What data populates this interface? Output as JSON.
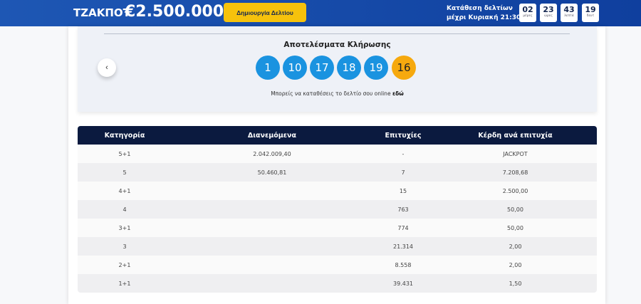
{
  "header": {
    "jackpot_label": "ΤΖΑΚΠΟΤ",
    "jackpot_amount": "€2.500.000",
    "create_button": "Δημιουργία Δελτίου",
    "deadline_line1": "Κατάθεση δελτίων",
    "deadline_line2": "μέχρι Κυριακή 21:30",
    "countdown": [
      {
        "value": "02",
        "unit": "μέρες"
      },
      {
        "value": "23",
        "unit": "ώρες"
      },
      {
        "value": "43",
        "unit": "λεπτά"
      },
      {
        "value": "19",
        "unit": "δευτ"
      }
    ]
  },
  "results": {
    "title": "Αποτελέσματα Κλήρωσης",
    "numbers": [
      "1",
      "10",
      "17",
      "18",
      "19"
    ],
    "bonus": "16",
    "note": "Μπορείς να καταθέσεις το δελτίο σου online",
    "note_link": "εδώ",
    "colors": {
      "ball": "#1a93e0",
      "bonus": "#f6a90e"
    }
  },
  "table": {
    "headers": [
      "Κατηγορία",
      "Διανεμόμενα",
      "Επιτυχίες",
      "Κέρδη ανά επιτυχία"
    ],
    "rows": [
      [
        "5+1",
        "2.042.009,40",
        "-",
        "JACKPOT"
      ],
      [
        "5",
        "50.460,81",
        "7",
        "7.208,68"
      ],
      [
        "4+1",
        "",
        "15",
        "2.500,00"
      ],
      [
        "4",
        "",
        "763",
        "50,00"
      ],
      [
        "3+1",
        "",
        "774",
        "50,00"
      ],
      [
        "3",
        "",
        "21.314",
        "2,00"
      ],
      [
        "2+1",
        "",
        "8.558",
        "2,00"
      ],
      [
        "1+1",
        "",
        "39.431",
        "1,50"
      ]
    ]
  }
}
